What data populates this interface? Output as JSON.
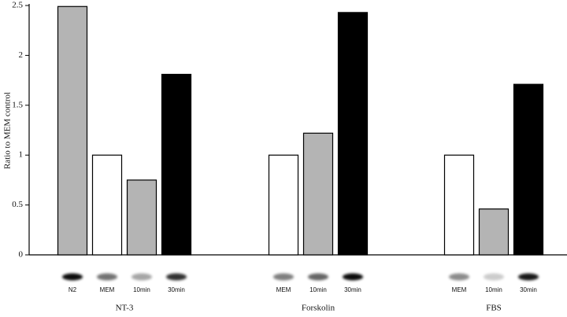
{
  "chart_data": {
    "type": "bar",
    "y_label": "Ratio to MEM control",
    "ylim": [
      0,
      2.5
    ],
    "yticks": [
      0,
      0.5,
      1,
      1.5,
      2,
      2.5
    ],
    "groups": [
      {
        "name": "NT-3",
        "bars": [
          {
            "label": "N2",
            "value": 2.49,
            "color": "#b4b4b4"
          },
          {
            "label": "MEM",
            "value": 1.0,
            "color": "#ffffff"
          },
          {
            "label": "10min",
            "value": 0.75,
            "color": "#b4b4b4"
          },
          {
            "label": "30min",
            "value": 1.81,
            "color": "#000000"
          }
        ]
      },
      {
        "name": "Forskolin",
        "bars": [
          {
            "label": "MEM",
            "value": 1.0,
            "color": "#ffffff"
          },
          {
            "label": "10min",
            "value": 1.22,
            "color": "#b4b4b4"
          },
          {
            "label": "30min",
            "value": 2.43,
            "color": "#000000"
          }
        ]
      },
      {
        "name": "FBS",
        "bars": [
          {
            "label": "MEM",
            "value": 1.0,
            "color": "#ffffff"
          },
          {
            "label": "10min",
            "value": 0.46,
            "color": "#b4b4b4"
          },
          {
            "label": "30min",
            "value": 1.71,
            "color": "#000000"
          }
        ]
      }
    ]
  }
}
